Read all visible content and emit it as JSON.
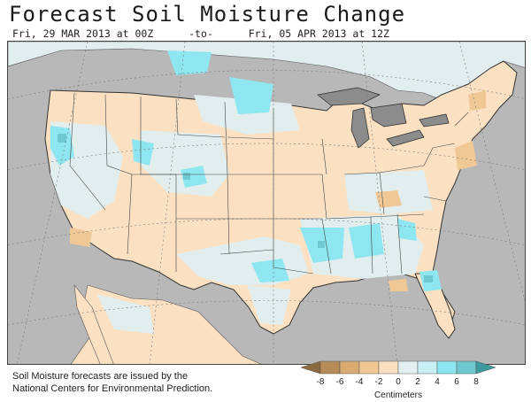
{
  "title": "Forecast Soil Moisture Change",
  "period": {
    "start": "Fri, 29 MAR 2013 at 00Z",
    "separator": "-to-",
    "end": "Fri, 05 APR 2013 at 12Z"
  },
  "footnote": {
    "line1": "Soil Moisture forecasts are issued by the",
    "line2": "National Centers for Environmental Prediction."
  },
  "legend": {
    "unit": "Centimeters",
    "ticks": [
      "-8",
      "-6",
      "-4",
      "-2",
      "0",
      "2",
      "4",
      "6",
      "8"
    ],
    "colors": [
      "#8c6a3f",
      "#b58b58",
      "#d9aa72",
      "#f0c896",
      "#fbe1c2",
      "#e4efef",
      "#c8f0f4",
      "#8ee6f0",
      "#6fc8d0",
      "#3d9a9e"
    ]
  },
  "map": {
    "ocean_color": "#b8b8b8",
    "land_dry_color": "#fbe1c2",
    "land_neutral_color": "#e2eded",
    "land_wet_color": "#8ee6f0",
    "land_dryer_color": "#f0c896",
    "lake_color": "#8c8c8c"
  }
}
